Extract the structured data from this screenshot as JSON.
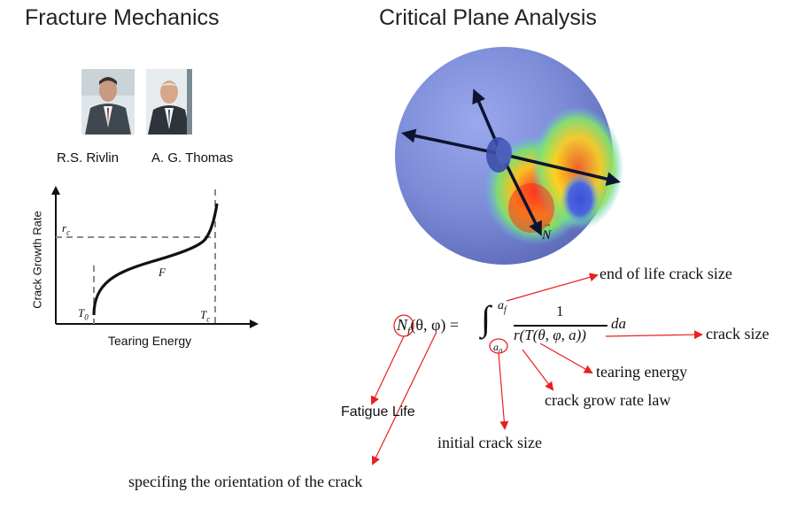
{
  "left_title": "Fracture Mechanics",
  "right_title": "Critical Plane Analysis",
  "people": [
    {
      "name": "R.S. Rivlin"
    },
    {
      "name": "A. G. Thomas"
    }
  ],
  "graph": {
    "ylabel": "Crack Growth Rate",
    "xlabel": "Tearing Energy",
    "curve_label": "F",
    "rc_label": "r",
    "rc_sub": "c",
    "t0_label": "T",
    "t0_sub": "0",
    "tc_label": "T",
    "tc_sub": "c"
  },
  "sphere": {
    "vector_label": "N"
  },
  "equation": {
    "lhs_symbol": "N",
    "lhs_sub": "f",
    "lhs_args": "(θ, φ) =",
    "upper_limit": "a",
    "upper_limit_sub": "f",
    "lower_limit": "a",
    "lower_limit_sub": "0",
    "numerator": "1",
    "denominator": "r(T(θ, φ, a))",
    "differential": "da"
  },
  "annotations": {
    "end_of_life": "end of life crack size",
    "crack_size": "crack size",
    "tearing_energy": "tearing energy",
    "crack_grow_rate_law": "crack grow rate law",
    "initial_crack_size": "initial crack size",
    "fatigue_life": "Fatigue Life",
    "orientation": "specifing the orientation of the crack"
  },
  "colors": {
    "arrow": "#e8201f",
    "sphere_base": "#7e8fd6",
    "dashed": "#8a8a8a"
  }
}
